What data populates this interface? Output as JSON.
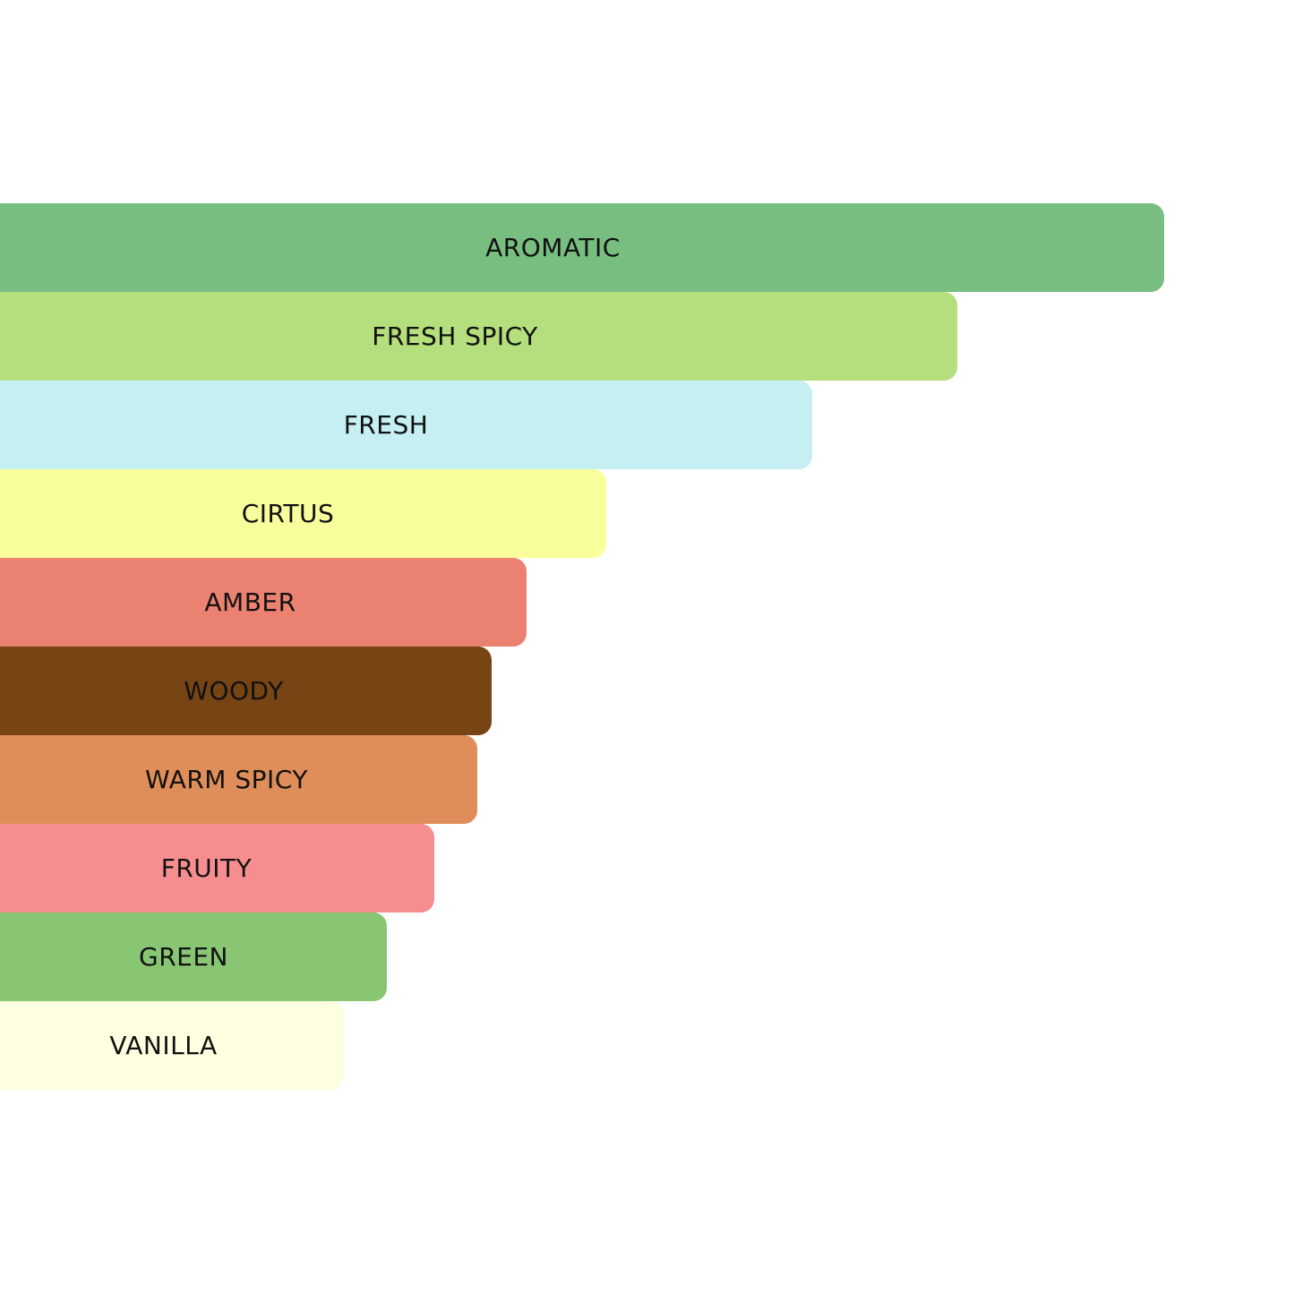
{
  "chart_data": {
    "type": "bar",
    "orientation": "horizontal",
    "title": "",
    "xlabel": "",
    "ylabel": "",
    "grid": false,
    "legend": "none",
    "xlim": [
      0,
      100
    ],
    "categories": [
      "AROMATIC",
      "FRESH SPICY",
      "FRESH",
      "CIRTUS",
      "AMBER",
      "WOODY",
      "WARM SPICY",
      "FRUITY",
      "GREEN",
      "VANILLA"
    ],
    "values": [
      100,
      82.2,
      69.8,
      52.1,
      45.2,
      42.2,
      41.0,
      37.3,
      33.2,
      29.5
    ],
    "colors": [
      "#78be80",
      "#b4df7c",
      "#c6eff3",
      "#f9fe9c",
      "#eb8170",
      "#774414",
      "#df8e5a",
      "#f68e90",
      "#88c673",
      "#fefee0"
    ]
  }
}
